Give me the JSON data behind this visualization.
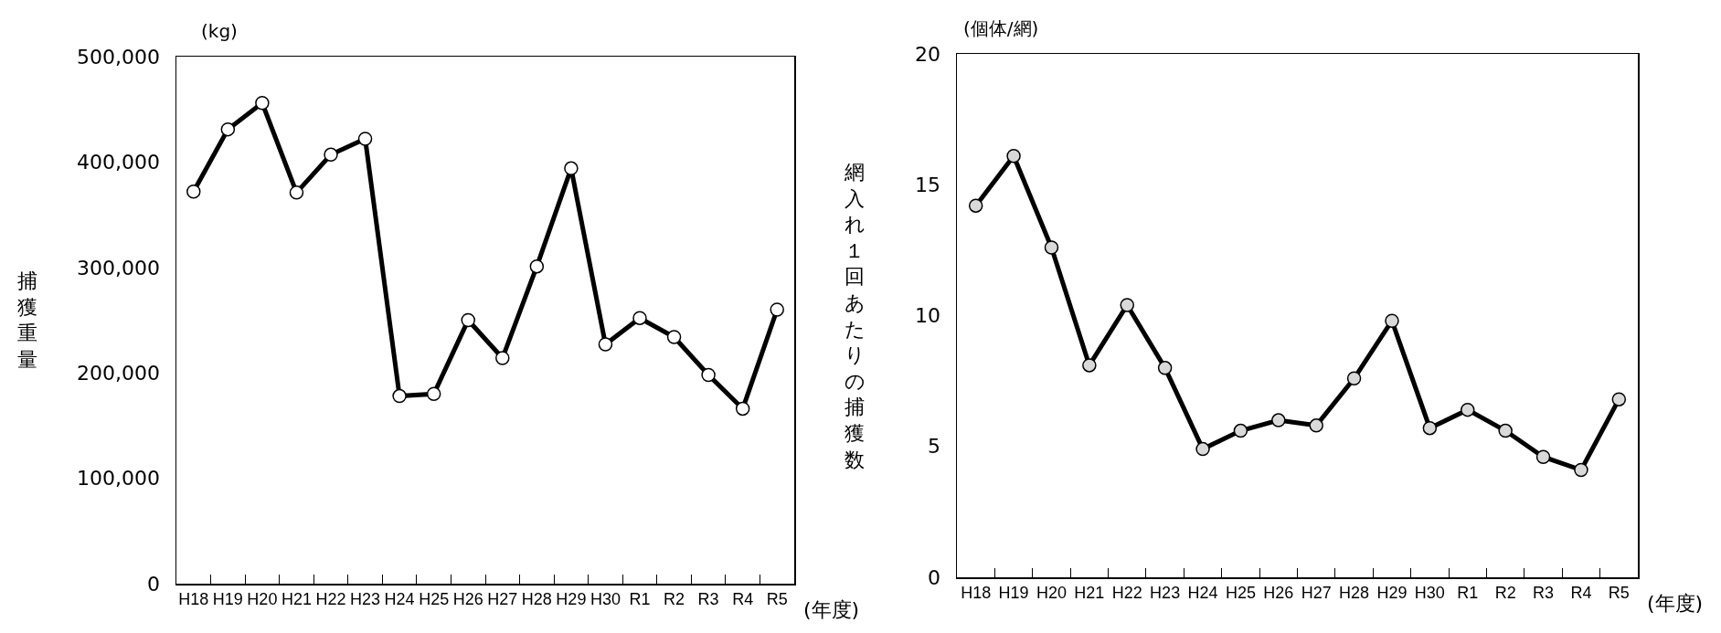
{
  "chart_data": [
    {
      "type": "line",
      "ylabel": "捕獲重量",
      "xlabel": "(年度)",
      "annotations": [
        "(kg)"
      ],
      "categories": [
        "H18",
        "H19",
        "H20",
        "H21",
        "H22",
        "H23",
        "H24",
        "H25",
        "H26",
        "H27",
        "H28",
        "H29",
        "H30",
        "R1",
        "R2",
        "R3",
        "R4",
        "R5"
      ],
      "series": [
        {
          "color": "#000000",
          "values": [
            372000,
            431000,
            456000,
            371000,
            407000,
            422000,
            178000,
            180000,
            250000,
            214000,
            301000,
            394000,
            227000,
            252000,
            234000,
            198000,
            166000,
            260000
          ]
        }
      ],
      "ylim": [
        0,
        500000
      ],
      "yticks": [
        0,
        {
          "value": 100000,
          "label": "100,000"
        },
        {
          "value": 200000,
          "label": "200,000"
        },
        {
          "value": 300000,
          "label": "300,000"
        },
        {
          "value": 400000,
          "label": "400,000"
        },
        {
          "value": 500000,
          "label": "500,000"
        }
      ],
      "grid": false,
      "marker": "circle",
      "line_style": "solid"
    },
    {
      "type": "line",
      "ylabel": "網入れ１回あたりの捕獲数",
      "xlabel": "(年度)",
      "annotations": [
        "(個体/網)"
      ],
      "categories": [
        "H18",
        "H19",
        "H20",
        "H21",
        "H22",
        "H23",
        "H24",
        "H25",
        "H26",
        "H27",
        "H28",
        "H29",
        "H30",
        "R1",
        "R2",
        "R3",
        "R4",
        "R5"
      ],
      "series": [
        {
          "color": "#000000",
          "values": [
            14.2,
            16.1,
            12.6,
            8.1,
            10.4,
            8.0,
            4.9,
            5.6,
            6.0,
            5.8,
            7.6,
            9.8,
            5.7,
            6.4,
            5.6,
            4.6,
            4.1,
            6.8
          ]
        }
      ],
      "ylim": [
        0,
        20
      ],
      "yticks": [
        0,
        5,
        10,
        15,
        20
      ],
      "grid": false,
      "marker": "circle",
      "line_style": "solid"
    }
  ]
}
